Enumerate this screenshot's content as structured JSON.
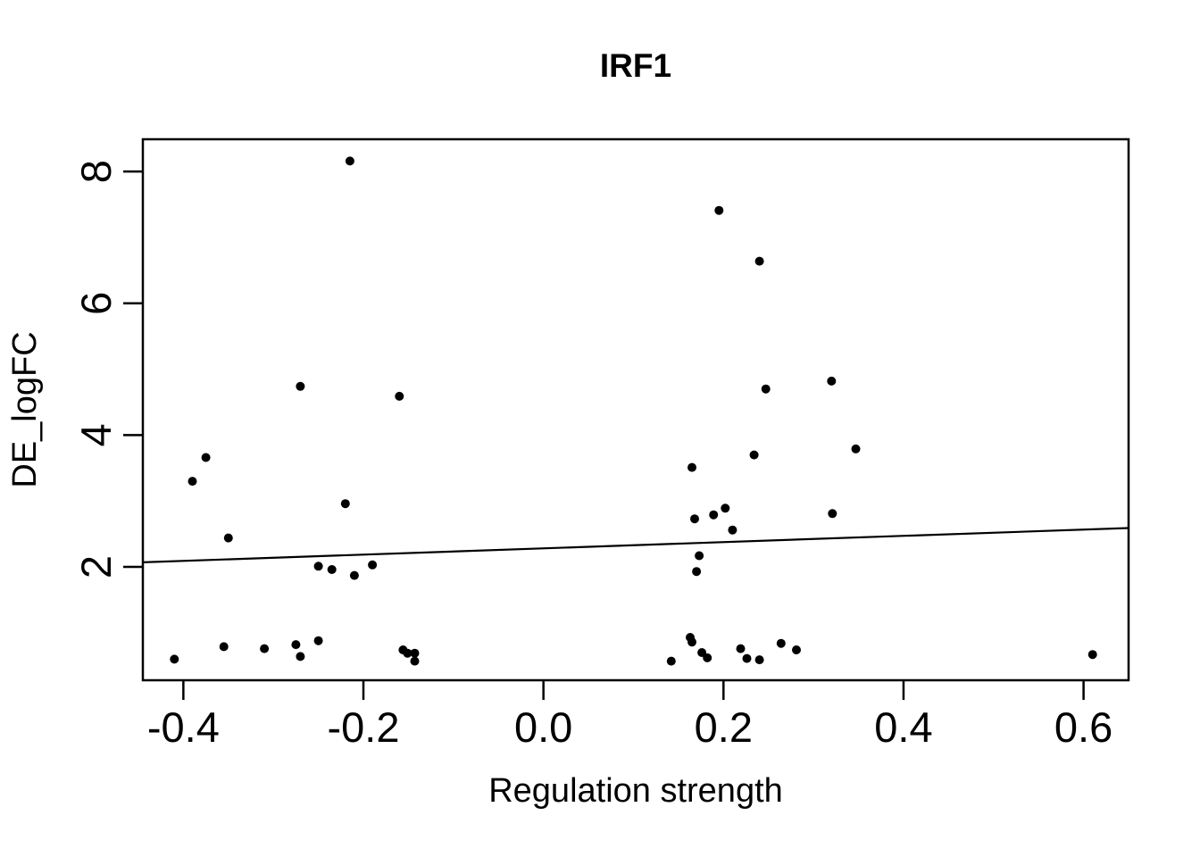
{
  "page": {
    "background": "#ffffff",
    "foreground": "#000000"
  },
  "chart_data": {
    "type": "scatter",
    "title": "IRF1",
    "xlabel": "Regulation strength",
    "ylabel": "DE_logFC",
    "xlim": [
      -0.445,
      0.65
    ],
    "ylim": [
      0.28,
      8.49
    ],
    "x_ticks": {
      "values": [
        -0.4,
        -0.2,
        0.0,
        0.2,
        0.4,
        0.6
      ],
      "labels": [
        "-0.4",
        "-0.2",
        "0.0",
        "0.2",
        "0.4",
        "0.6"
      ]
    },
    "y_ticks": {
      "values": [
        2,
        4,
        6,
        8
      ],
      "labels": [
        "2",
        "4",
        "6",
        "8"
      ]
    },
    "grid": false,
    "legend_position": "none",
    "point_color": "#000000",
    "box_color": "#000000",
    "regression_line": {
      "x1": -0.445,
      "y1": 2.07,
      "x2": 0.65,
      "y2": 2.59,
      "color": "#000000"
    },
    "points": [
      [
        -0.215,
        8.16
      ],
      [
        -0.27,
        4.74
      ],
      [
        -0.16,
        4.59
      ],
      [
        -0.375,
        3.66
      ],
      [
        -0.39,
        3.3
      ],
      [
        -0.22,
        2.96
      ],
      [
        -0.35,
        2.44
      ],
      [
        -0.25,
        2.01
      ],
      [
        -0.235,
        1.96
      ],
      [
        -0.21,
        1.87
      ],
      [
        -0.19,
        2.03
      ],
      [
        -0.41,
        0.6
      ],
      [
        -0.355,
        0.79
      ],
      [
        -0.31,
        0.76
      ],
      [
        -0.275,
        0.82
      ],
      [
        -0.27,
        0.64
      ],
      [
        -0.25,
        0.88
      ],
      [
        -0.156,
        0.74
      ],
      [
        -0.151,
        0.69
      ],
      [
        -0.143,
        0.69
      ],
      [
        -0.143,
        0.57
      ],
      [
        0.195,
        7.41
      ],
      [
        0.24,
        6.64
      ],
      [
        0.247,
        4.7
      ],
      [
        0.32,
        4.82
      ],
      [
        0.234,
        3.7
      ],
      [
        0.165,
        3.51
      ],
      [
        0.347,
        3.79
      ],
      [
        0.202,
        2.89
      ],
      [
        0.189,
        2.79
      ],
      [
        0.168,
        2.73
      ],
      [
        0.21,
        2.56
      ],
      [
        0.321,
        2.81
      ],
      [
        0.173,
        2.17
      ],
      [
        0.17,
        1.93
      ],
      [
        0.163,
        0.93
      ],
      [
        0.165,
        0.86
      ],
      [
        0.142,
        0.57
      ],
      [
        0.176,
        0.7
      ],
      [
        0.182,
        0.62
      ],
      [
        0.219,
        0.76
      ],
      [
        0.226,
        0.61
      ],
      [
        0.24,
        0.59
      ],
      [
        0.264,
        0.84
      ],
      [
        0.281,
        0.74
      ],
      [
        0.61,
        0.67
      ]
    ]
  }
}
